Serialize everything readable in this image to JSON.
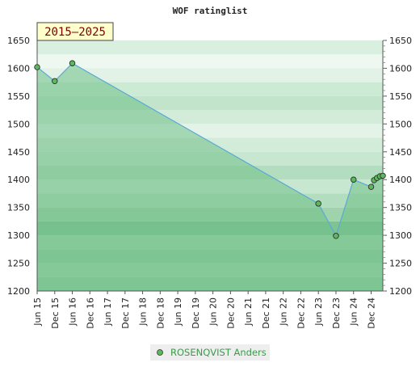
{
  "chart_data": {
    "type": "area",
    "title": "WOF ratinglist",
    "badge": "2015–2025",
    "xlabel": "",
    "ylabel": "",
    "ylim": [
      1200,
      1650
    ],
    "yticks": [
      1200,
      1250,
      1300,
      1350,
      1400,
      1450,
      1500,
      1550,
      1600,
      1650
    ],
    "x_tick_labels": [
      "Jun 15",
      "Dec 15",
      "Jun 16",
      "Dec 16",
      "Jun 17",
      "Dec 17",
      "Jun 18",
      "Dec 18",
      "Jun 19",
      "Dec 19",
      "Jun 20",
      "Dec 20",
      "Jun 21",
      "Dec 21",
      "Jun 22",
      "Dec 22",
      "Jun 23",
      "Dec 23",
      "Jun 24",
      "Dec 24"
    ],
    "series": [
      {
        "name": "ROSENQVIST Anders",
        "x": [
          "2015-06",
          "2015-12",
          "2016-06",
          "2023-06",
          "2023-12",
          "2024-06",
          "2024-12",
          "2025-01",
          "2025-02",
          "2025-03",
          "2025-04"
        ],
        "values": [
          1602,
          1577,
          1609,
          1357,
          1299,
          1400,
          1387,
          1399,
          1403,
          1406,
          1407
        ]
      }
    ],
    "grid": true,
    "legend_position": "bottom"
  },
  "colors": {
    "line": "#5aa9d6",
    "marker": "#5cb85c",
    "fill": "#6fbf86",
    "band_dark": "#6fba86",
    "band_light": "#e9f5ec"
  }
}
